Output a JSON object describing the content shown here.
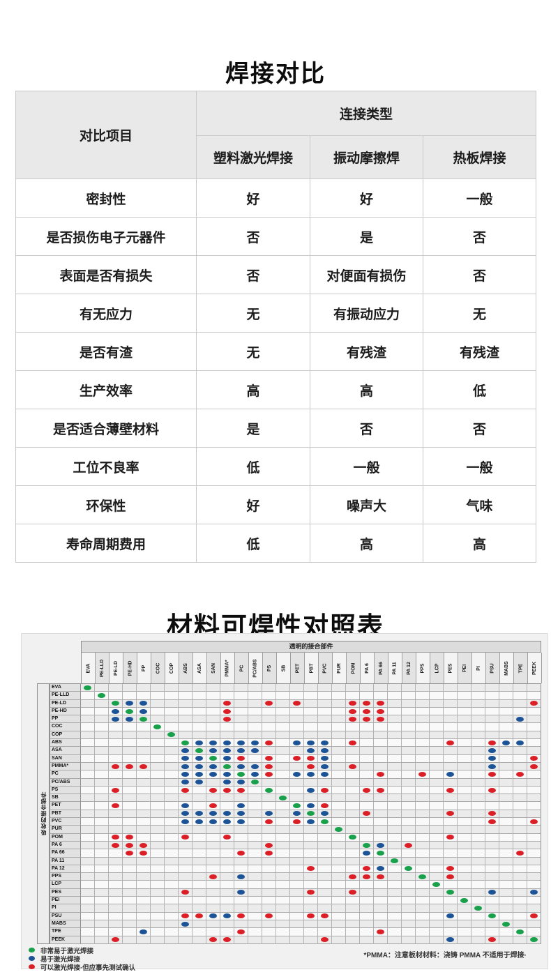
{
  "page": {
    "title_comparison": "焊接对比",
    "title_matrix": "材料可焊性对照表"
  },
  "comparison_table": {
    "corner_header": "对比项目",
    "group_header": "连接类型",
    "columns": [
      "塑料激光焊接",
      "振动摩擦焊",
      "热板焊接"
    ],
    "rows": [
      {
        "item": "密封性",
        "values": [
          "好",
          "好",
          "一般"
        ]
      },
      {
        "item": "是否损伤电子元器件",
        "values": [
          "否",
          "是",
          "否"
        ]
      },
      {
        "item": "表面是否有损失",
        "values": [
          "否",
          "对便面有损伤",
          "否"
        ]
      },
      {
        "item": "有无应力",
        "values": [
          "无",
          "有振动应力",
          "无"
        ]
      },
      {
        "item": "是否有渣",
        "values": [
          "无",
          "有残渣",
          "有残渣"
        ]
      },
      {
        "item": "生产效率",
        "values": [
          "高",
          "高",
          "低"
        ]
      },
      {
        "item": "是否适合薄壁材料",
        "values": [
          "是",
          "否",
          "否"
        ]
      },
      {
        "item": "工位不良率",
        "values": [
          "低",
          "一般",
          "一般"
        ]
      },
      {
        "item": "环保性",
        "values": [
          "好",
          "噪声大",
          "气味"
        ]
      },
      {
        "item": "寿命周期费用",
        "values": [
          "低",
          "高",
          "高"
        ]
      }
    ]
  },
  "weldability_matrix": {
    "top_axis_label": "透明的接合部件",
    "left_axis_label": "吸收的接合部件",
    "colors": {
      "G": "#18a04a",
      "B": "#1c5396",
      "R": "#dc1f26"
    },
    "materials": [
      "EVA",
      "PE-LLD",
      "PE-LD",
      "PE-HD",
      "PP",
      "COC",
      "COP",
      "ABS",
      "ASA",
      "SAN",
      "PMMA*",
      "PC",
      "PC/ABS",
      "PS",
      "SB",
      "PET",
      "PBT",
      "PVC",
      "PUR",
      "POM",
      "PA 6",
      "PA 66",
      "PA 11",
      "PA 12",
      "PPS",
      "LCP",
      "PES",
      "PEI",
      "PI",
      "PSU",
      "MABS",
      "TPE",
      "PEEK"
    ],
    "cells": {
      "EVA": {
        "EVA": "G"
      },
      "PE-LLD": {
        "PE-LLD": "G"
      },
      "PE-LD": {
        "PE-LD": "G",
        "PE-HD": "B",
        "PP": "B",
        "PMMA*": "R",
        "PS": "R",
        "PET": "R",
        "POM": "R",
        "PA 6": "R",
        "PA 66": "R",
        "PEEK": "R"
      },
      "PE-HD": {
        "PE-LD": "B",
        "PE-HD": "G",
        "PP": "B",
        "PMMA*": "R",
        "POM": "R",
        "PA 6": "R",
        "PA 66": "R"
      },
      "PP": {
        "PE-LD": "B",
        "PE-HD": "B",
        "PP": "G",
        "PMMA*": "R",
        "POM": "R",
        "PA 6": "R",
        "PA 66": "R",
        "TPE": "B"
      },
      "COC": {
        "COC": "G"
      },
      "COP": {
        "COP": "G"
      },
      "ABS": {
        "ABS": "G",
        "ASA": "B",
        "SAN": "B",
        "PMMA*": "B",
        "PC": "B",
        "PC/ABS": "B",
        "PS": "R",
        "PET": "B",
        "PBT": "B",
        "PVC": "B",
        "POM": "R",
        "PES": "R",
        "PSU": "R",
        "MABS": "B",
        "TPE": "B"
      },
      "ASA": {
        "ABS": "B",
        "ASA": "G",
        "SAN": "B",
        "PMMA*": "B",
        "PC": "B",
        "PC/ABS": "B",
        "PBT": "B",
        "PVC": "B",
        "PSU": "B"
      },
      "SAN": {
        "ABS": "B",
        "ASA": "B",
        "SAN": "G",
        "PMMA*": "B",
        "PC": "R",
        "PS": "R",
        "PET": "R",
        "PBT": "R",
        "PVC": "B",
        "PSU": "B",
        "PEEK": "R"
      },
      "PMMA*": {
        "PE-LD": "R",
        "PE-HD": "R",
        "PP": "R",
        "ABS": "B",
        "ASA": "B",
        "SAN": "B",
        "PMMA*": "G",
        "PC": "B",
        "PC/ABS": "B",
        "PS": "R",
        "PBT": "R",
        "PVC": "B",
        "POM": "R",
        "PSU": "B",
        "PEEK": "R"
      },
      "PC": {
        "ABS": "B",
        "ASA": "B",
        "SAN": "B",
        "PMMA*": "B",
        "PC": "G",
        "PC/ABS": "B",
        "PS": "R",
        "PET": "B",
        "PBT": "B",
        "PVC": "B",
        "PA 66": "R",
        "PPS": "R",
        "PES": "B",
        "PSU": "R",
        "TPE": "R"
      },
      "PC/ABS": {
        "ABS": "B",
        "ASA": "B",
        "PMMA*": "B",
        "PC": "B",
        "PC/ABS": "G"
      },
      "PS": {
        "PE-LD": "R",
        "ABS": "R",
        "SAN": "R",
        "PMMA*": "R",
        "PC": "R",
        "PS": "G",
        "PBT": "B",
        "PVC": "R",
        "PA 6": "R",
        "PA 66": "R",
        "PES": "R",
        "PSU": "R"
      },
      "SB": {
        "SB": "G"
      },
      "PET": {
        "PE-LD": "R",
        "ABS": "B",
        "SAN": "R",
        "PC": "B",
        "PET": "G",
        "PBT": "B",
        "PVC": "R"
      },
      "PBT": {
        "ABS": "B",
        "ASA": "B",
        "SAN": "B",
        "PMMA*": "B",
        "PC": "B",
        "PS": "B",
        "PET": "B",
        "PBT": "G",
        "PVC": "B",
        "PA 6": "R",
        "PES": "R",
        "PSU": "R"
      },
      "PVC": {
        "ABS": "B",
        "ASA": "B",
        "SAN": "B",
        "PMMA*": "B",
        "PC": "B",
        "PS": "R",
        "PET": "R",
        "PBT": "B",
        "PVC": "G",
        "PSU": "R",
        "PEEK": "R"
      },
      "PUR": {
        "PUR": "G"
      },
      "POM": {
        "PE-LD": "R",
        "PE-HD": "R",
        "ABS": "R",
        "PMMA*": "R",
        "POM": "G",
        "PES": "R"
      },
      "PA 6": {
        "PE-LD": "R",
        "PE-HD": "R",
        "PP": "R",
        "PS": "R",
        "PA 6": "G",
        "PA 66": "B",
        "PA 12": "R"
      },
      "PA 66": {
        "PE-HD": "R",
        "PP": "R",
        "PC": "R",
        "PS": "R",
        "PA 6": "B",
        "PA 66": "G",
        "TPE": "R"
      },
      "PA 11": {
        "PA 11": "G"
      },
      "PA 12": {
        "PBT": "R",
        "PA 6": "R",
        "PA 66": "B",
        "PA 12": "G",
        "PES": "R"
      },
      "PPS": {
        "SAN": "R",
        "PC": "B",
        "POM": "R",
        "PA 6": "R",
        "PA 66": "R",
        "PPS": "G",
        "PES": "R"
      },
      "LCP": {
        "LCP": "G"
      },
      "PES": {
        "ABS": "R",
        "PC": "B",
        "PBT": "R",
        "POM": "R",
        "PES": "G",
        "PSU": "B",
        "PEEK": "B"
      },
      "PEI": {
        "PEI": "G"
      },
      "PI": {
        "PI": "G"
      },
      "PSU": {
        "ABS": "R",
        "ASA": "R",
        "SAN": "B",
        "PMMA*": "B",
        "PC": "R",
        "PS": "R",
        "PBT": "R",
        "PVC": "R",
        "PES": "B",
        "PSU": "G",
        "PEEK": "R"
      },
      "MABS": {
        "ABS": "B",
        "MABS": "G"
      },
      "TPE": {
        "PP": "B",
        "PC": "R",
        "PA 66": "R",
        "TPE": "G"
      },
      "PEEK": {
        "PE-LD": "R",
        "SAN": "R",
        "PMMA*": "R",
        "PVC": "R",
        "PES": "B",
        "PSU": "R",
        "PEEK": "G"
      }
    }
  },
  "legend": {
    "items": [
      {
        "key": "G",
        "label": "非常易于激光焊接"
      },
      {
        "key": "B",
        "label": "易于激光焊接"
      },
      {
        "key": "R",
        "label": "可以激光焊接·但应事先测试确认"
      }
    ]
  },
  "footnote": "*PMMA：注意板材材料：浇铸 PMMA 不适用于焊接·"
}
